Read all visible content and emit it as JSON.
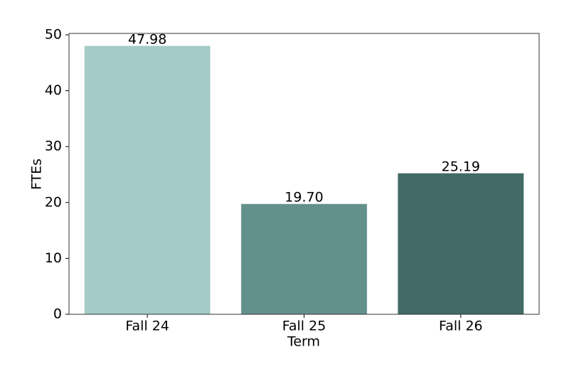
{
  "chart_data": {
    "type": "bar",
    "x_label": "Term",
    "y_label": "FTEs",
    "categories": [
      "Fall 24",
      "Fall 25",
      "Fall 26"
    ],
    "values": [
      47.98,
      19.7,
      25.19
    ],
    "value_labels": [
      "47.98",
      "19.70",
      "25.19"
    ],
    "colors": [
      "#a3cbc8",
      "#64908c",
      "#426a66"
    ],
    "ylim": [
      0,
      50.25
    ],
    "yticks": [
      0,
      10,
      20,
      30,
      40,
      50
    ],
    "grid": false
  }
}
